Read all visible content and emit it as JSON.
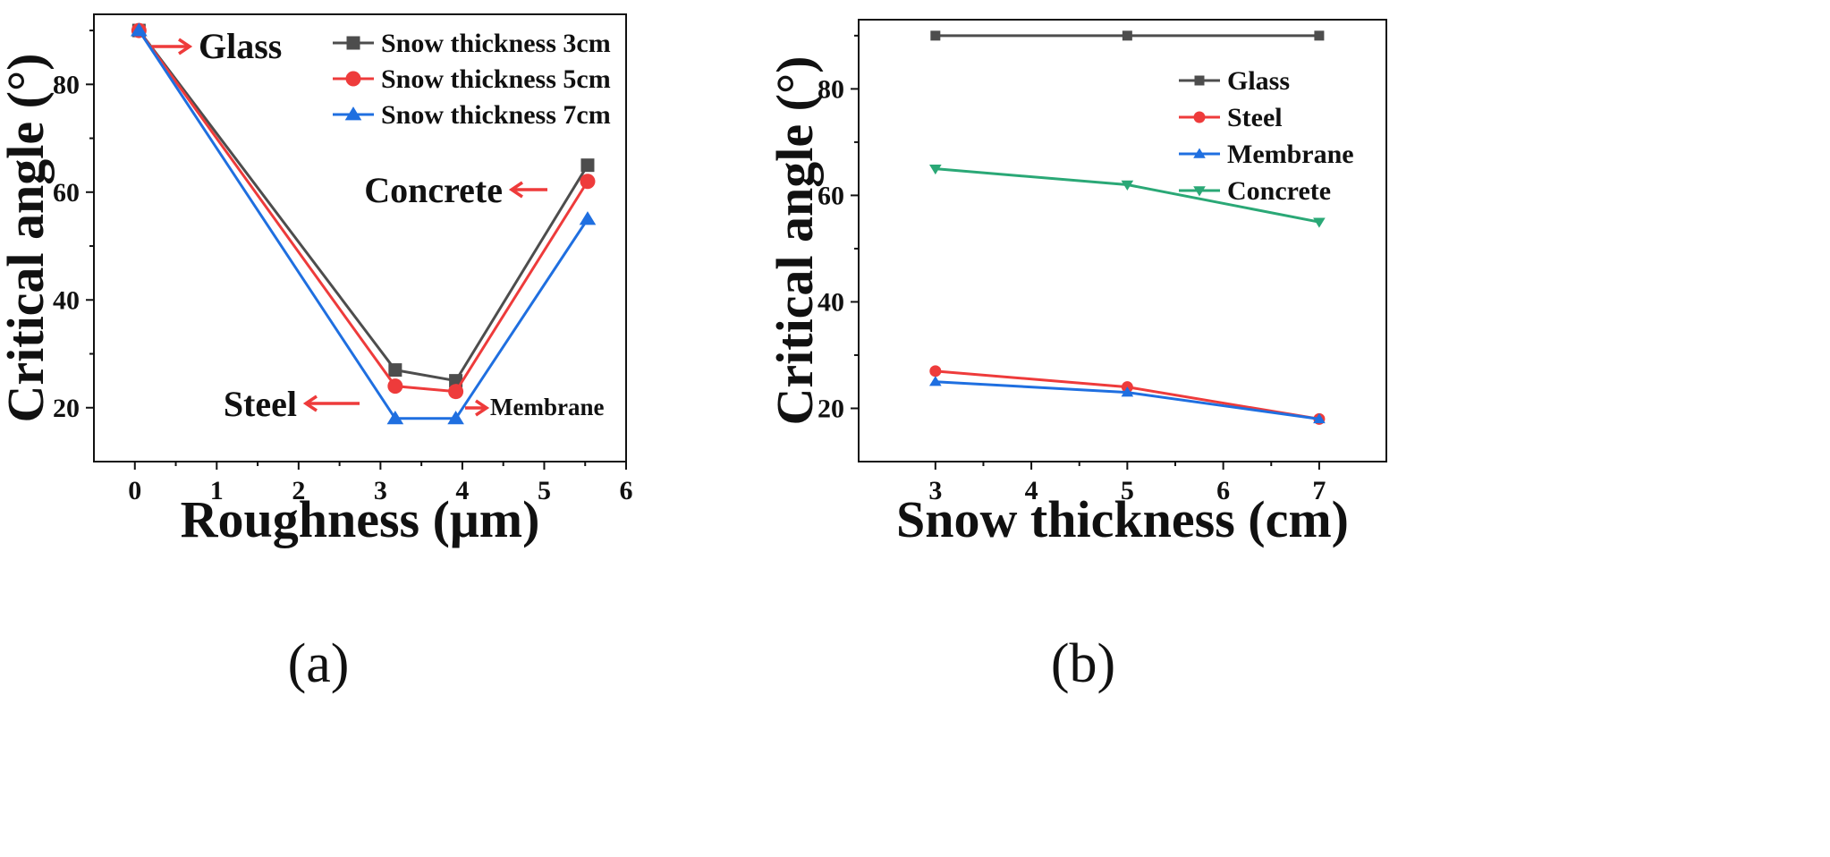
{
  "chart_data": [
    {
      "type": "line",
      "panel": "a",
      "panel_label": "(a)",
      "xlabel": "Roughness (μm)",
      "ylabel": "Critical angle (°)",
      "xlim": [
        -0.5,
        6
      ],
      "ylim": [
        10,
        93
      ],
      "xticks": [
        0,
        1,
        2,
        3,
        4,
        5,
        6
      ],
      "yticks": [
        20,
        40,
        60,
        80
      ],
      "legend_position": "top-right",
      "series": [
        {
          "name": "Snow thickness 3cm",
          "color": "#4d4d4d",
          "marker": "square",
          "points": [
            [
              0.05,
              90
            ],
            [
              3.18,
              27
            ],
            [
              3.92,
              25
            ],
            [
              5.53,
              65
            ]
          ]
        },
        {
          "name": "Snow thickness 5cm",
          "color": "#ee3b3b",
          "marker": "circle",
          "points": [
            [
              0.05,
              90
            ],
            [
              3.18,
              24
            ],
            [
              3.92,
              23
            ],
            [
              5.53,
              62
            ]
          ]
        },
        {
          "name": "Snow thickness 7cm",
          "color": "#1f6fe0",
          "marker": "triangle-up",
          "points": [
            [
              0.05,
              90
            ],
            [
              3.18,
              18
            ],
            [
              3.92,
              18
            ],
            [
              5.53,
              55
            ]
          ]
        }
      ],
      "annotations": [
        {
          "text": "Glass",
          "arrow": "right"
        },
        {
          "text": "Concrete",
          "arrow": "left"
        },
        {
          "text": "Steel",
          "arrow": "left"
        },
        {
          "text": "Membrane",
          "arrow": "right"
        }
      ]
    },
    {
      "type": "line",
      "panel": "b",
      "panel_label": "(b)",
      "xlabel": "Snow thickness (cm)",
      "ylabel": "Critical angle (°)",
      "xlim": [
        2.2,
        7.7
      ],
      "ylim": [
        10,
        93
      ],
      "xticks": [
        3,
        4,
        5,
        6,
        7
      ],
      "yticks": [
        20,
        40,
        60,
        80
      ],
      "legend_position": "top-right",
      "series": [
        {
          "name": "Glass",
          "color": "#4d4d4d",
          "marker": "square",
          "points": [
            [
              3,
              90
            ],
            [
              5,
              90
            ],
            [
              7,
              90
            ]
          ]
        },
        {
          "name": "Steel",
          "color": "#ee3b3b",
          "marker": "circle",
          "points": [
            [
              3,
              27
            ],
            [
              5,
              24
            ],
            [
              7,
              18
            ]
          ]
        },
        {
          "name": "Membrane",
          "color": "#1f6fe0",
          "marker": "triangle-up",
          "points": [
            [
              3,
              25
            ],
            [
              5,
              23
            ],
            [
              7,
              18
            ]
          ]
        },
        {
          "name": "Concrete",
          "color": "#2aa876",
          "marker": "triangle-down",
          "points": [
            [
              3,
              65
            ],
            [
              5,
              62
            ],
            [
              7,
              55
            ]
          ]
        }
      ]
    }
  ],
  "colors": {
    "axis": "#111111",
    "arrow": "#ee3b3b"
  }
}
